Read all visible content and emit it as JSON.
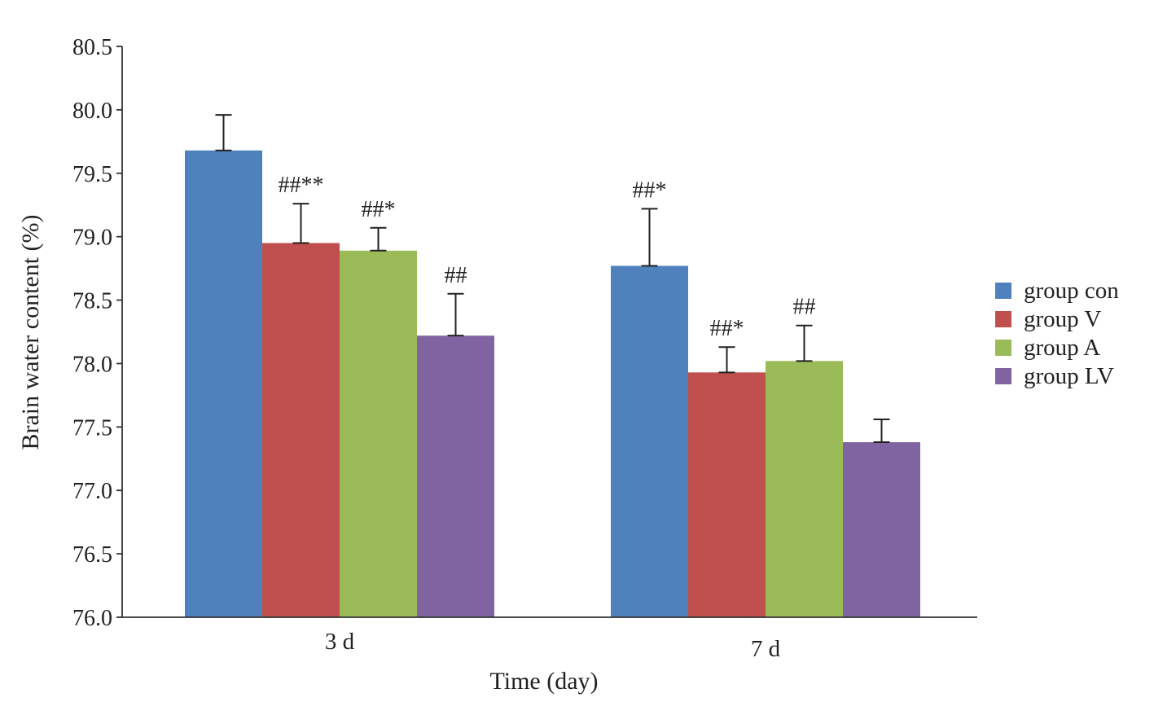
{
  "chart_data": {
    "type": "bar",
    "title": "",
    "xlabel": "Time (day)",
    "ylabel": "Brain water content (%)",
    "ylim": [
      76.0,
      80.5
    ],
    "yticks": [
      "76.0",
      "76.5",
      "77.0",
      "77.5",
      "78.0",
      "78.5",
      "79.0",
      "79.5",
      "80.0",
      "80.5"
    ],
    "categories": [
      "3 d",
      "7 d"
    ],
    "grid": false,
    "legend_position": "right",
    "series": [
      {
        "name": "group con",
        "color": "#4F81BD",
        "values": [
          79.68,
          78.77
        ],
        "errors": [
          0.28,
          0.45
        ],
        "annotations": [
          "",
          "##*"
        ]
      },
      {
        "name": "group V",
        "color": "#C0504D",
        "values": [
          78.95,
          77.93
        ],
        "errors": [
          0.31,
          0.2
        ],
        "annotations": [
          "##**",
          "##*"
        ]
      },
      {
        "name": "group A",
        "color": "#9BBB59",
        "values": [
          78.89,
          78.02
        ],
        "errors": [
          0.18,
          0.28
        ],
        "annotations": [
          "##*",
          "##"
        ]
      },
      {
        "name": "group LV",
        "color": "#8064A2",
        "values": [
          78.22,
          77.38
        ],
        "errors": [
          0.33,
          0.18
        ],
        "annotations": [
          "##",
          ""
        ]
      }
    ]
  }
}
